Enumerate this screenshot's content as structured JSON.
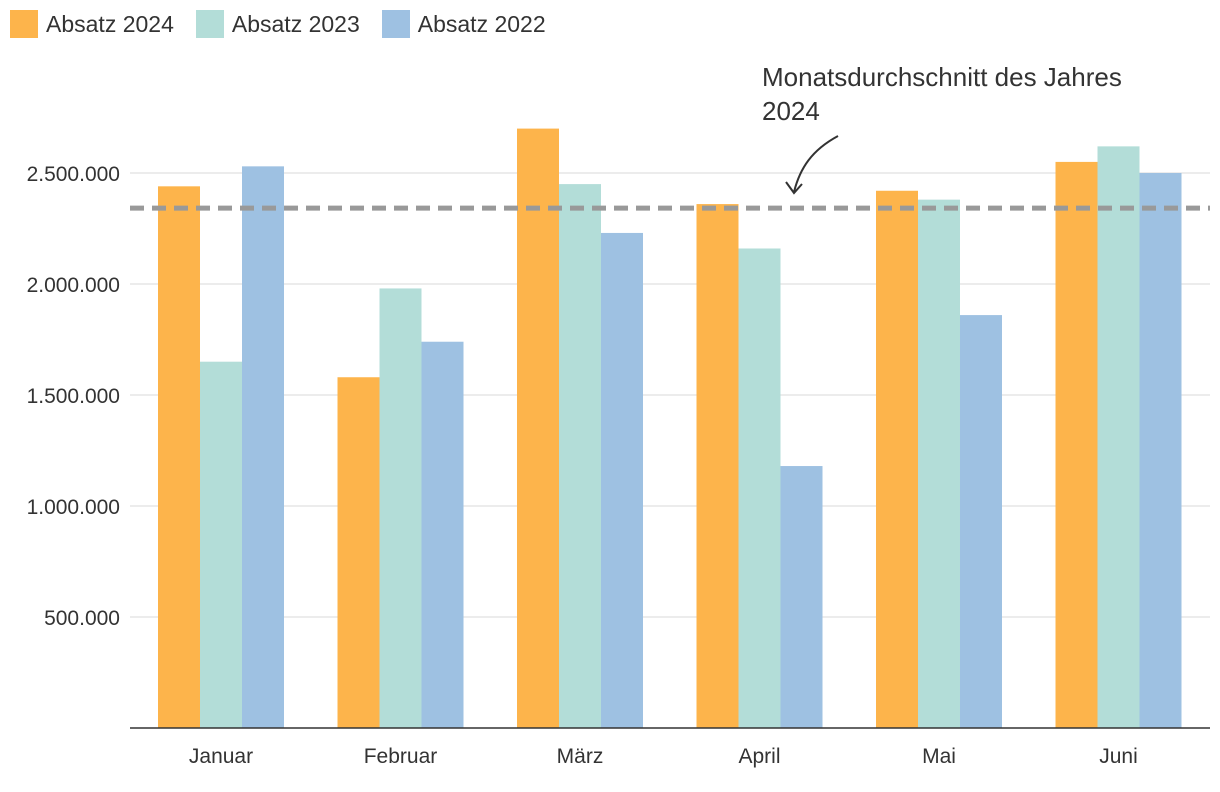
{
  "chart_data": {
    "type": "bar",
    "categories": [
      "Januar",
      "Februar",
      "März",
      "April",
      "Mai",
      "Juni"
    ],
    "series": [
      {
        "name": "Absatz 2024",
        "color": "#FDB44B",
        "values": [
          2440000,
          1580000,
          2700000,
          2360000,
          2420000,
          2550000
        ]
      },
      {
        "name": "Absatz 2023",
        "color": "#B3DDD8",
        "values": [
          1650000,
          1980000,
          2450000,
          2160000,
          2380000,
          2620000
        ]
      },
      {
        "name": "Absatz 2022",
        "color": "#9EC1E2",
        "values": [
          2530000,
          1740000,
          2230000,
          1180000,
          1860000,
          2500000
        ]
      }
    ],
    "ylim": [
      0,
      2750000
    ],
    "yticks": [
      500000,
      1000000,
      1500000,
      2000000,
      2500000
    ],
    "ytick_labels": [
      "500.000",
      "1.000.000",
      "1.500.000",
      "2.000.000",
      "2.500.000"
    ],
    "reference_line": {
      "value": 2341667,
      "color": "#999999",
      "style": "dashed"
    },
    "annotation": {
      "lines": [
        "Monatsdurchschnitt des Jahres",
        "2024"
      ]
    },
    "grid": true,
    "legend_position": "top-left"
  }
}
